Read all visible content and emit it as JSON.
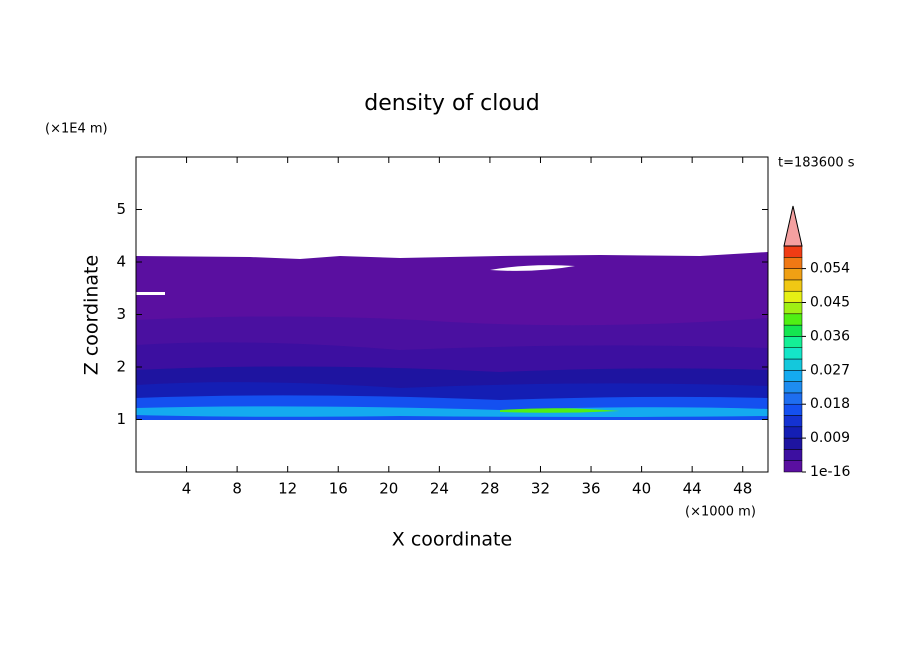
{
  "chart_data": {
    "type": "contour",
    "title": "density of cloud",
    "x_label": "X coordinate",
    "y_label": "Z coordinate",
    "x_unit": "(×1000 m)",
    "y_unit": "(×1E4 m)",
    "annotation": "t=183600 s",
    "xlim": [
      0,
      50
    ],
    "xticks": [
      4,
      8,
      12,
      16,
      20,
      24,
      28,
      32,
      36,
      40,
      44,
      48
    ],
    "ylim": [
      0,
      6
    ],
    "yticks": [
      1,
      2,
      3,
      4,
      5
    ],
    "colorbar": {
      "clim": [
        0,
        0.06
      ],
      "ticks": [
        1e-16,
        0.009,
        0.018,
        0.027,
        0.036,
        0.045,
        0.054
      ],
      "colors": [
        "#5a0fa0",
        "#3c0fa0",
        "#1e14a0",
        "#141eb4",
        "#1432d2",
        "#1450f0",
        "#1e6ef0",
        "#1e8cf0",
        "#14aaf0",
        "#14c8dc",
        "#14e6c8",
        "#14f096",
        "#14e650",
        "#50f014",
        "#a0f014",
        "#e6f014",
        "#f0c814",
        "#f0a014",
        "#f07814",
        "#f03c14"
      ],
      "extend_color": "#f4a0a0"
    }
  }
}
